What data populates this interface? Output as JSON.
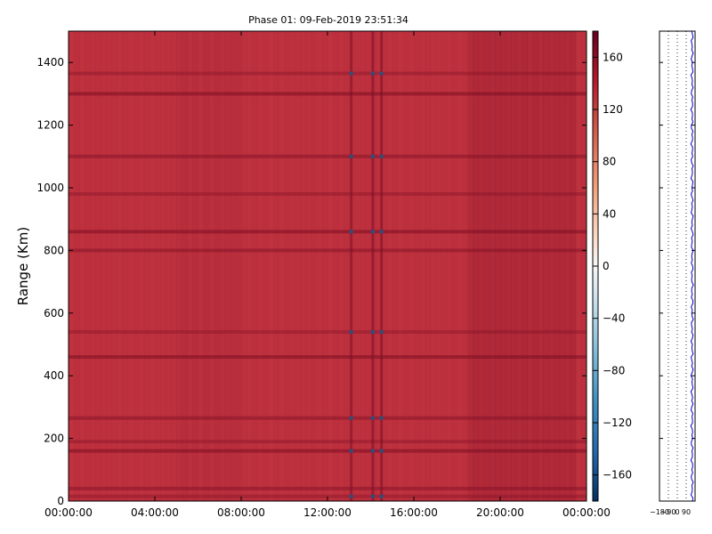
{
  "chart_data": [
    {
      "type": "heatmap",
      "title": "Phase 01: 09-Feb-2019 23:51:34",
      "ylabel": "Range (Km)",
      "xlabel": "",
      "x_tick_labels": [
        "00:00:00",
        "04:00:00",
        "08:00:00",
        "12:00:00",
        "16:00:00",
        "20:00:00",
        "00:00:00"
      ],
      "x_range_hours": [
        0,
        24
      ],
      "y_ticks": [
        0,
        200,
        400,
        600,
        800,
        1000,
        1200,
        1400
      ],
      "ylim": [
        0,
        1500
      ],
      "colorbar": {
        "ticks": [
          160,
          120,
          80,
          40,
          0,
          -40,
          -80,
          -120,
          -160
        ],
        "tick_labels": [
          "160",
          "120",
          "80",
          "40",
          "0",
          "−40",
          "−80",
          "−120",
          "−160"
        ],
        "range": [
          -180,
          180
        ],
        "colormap": "RdBu_r"
      },
      "typical_phase_value": 150,
      "stripe_ranges_km": [
        15,
        40,
        160,
        190,
        265,
        460,
        540,
        800,
        860,
        980,
        1100,
        1300,
        1365
      ],
      "outlier_times_hours": [
        13.1,
        14.1,
        14.5
      ],
      "darker_period_hours": [
        18.5,
        23.5
      ]
    },
    {
      "type": "line",
      "x_tick_labels": [
        "−180",
        "−90",
        "0",
        "90"
      ],
      "xlim": [
        -180,
        180
      ],
      "ylim": [
        0,
        1500
      ],
      "grid": "vertical dotted",
      "line_color": "#0000cc",
      "typical_value": 150
    }
  ],
  "colors": {
    "heat_base": "#c43440",
    "heat_dark": "#7c0f25",
    "heat_outlier": "#2d4f7e",
    "profile_line": "#0000cc"
  }
}
